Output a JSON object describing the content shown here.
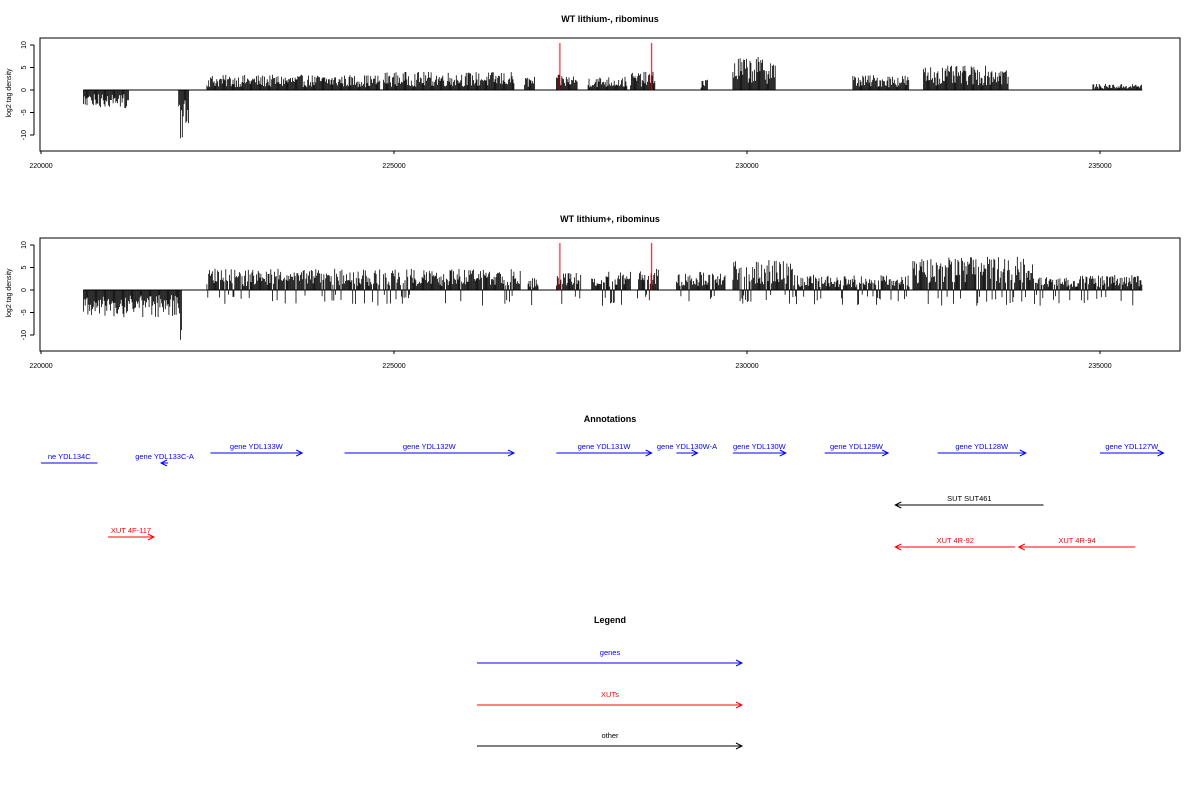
{
  "colors": {
    "bars": "#000000",
    "marker": "#ff0000",
    "gene": "#0000ff",
    "xut": "#ff0000",
    "other": "#000000"
  },
  "chart_data": [
    {
      "type": "bar",
      "title": "WT lithium-, ribominus",
      "xlabel": "",
      "ylabel": "log2 tag density",
      "xlim": [
        220000,
        236000
      ],
      "ylim": [
        -13,
        11
      ],
      "xticks": [
        220000,
        225000,
        230000,
        235000
      ],
      "xtick_labels": [
        "220000",
        "225000",
        "230000",
        "235000"
      ],
      "yticks": [
        10,
        5,
        0,
        -5,
        -10
      ],
      "ytick_labels": [
        "10",
        "5",
        "0",
        "-5",
        "-10"
      ],
      "marker_lines_x": [
        227350,
        228650
      ],
      "series": [
        {
          "values": [
            [
              220600,
              221250,
              -3
            ],
            [
              221250,
              221950,
              0
            ],
            [
              221950,
              222100,
              -8
            ],
            [
              222100,
              222350,
              0
            ],
            [
              222350,
              224800,
              2.5
            ],
            [
              224800,
              224850,
              0
            ],
            [
              224850,
              226700,
              3
            ],
            [
              226700,
              226750,
              0
            ],
            [
              226850,
              227000,
              2.2
            ],
            [
              227300,
              227600,
              2.5
            ],
            [
              227750,
              228300,
              2.2
            ],
            [
              228350,
              228700,
              3
            ],
            [
              228700,
              229300,
              0
            ],
            [
              229350,
              229450,
              2
            ],
            [
              229800,
              230400,
              5.5
            ],
            [
              230400,
              231500,
              0
            ],
            [
              231500,
              232300,
              2.5
            ],
            [
              232500,
              233700,
              4
            ],
            [
              233800,
              234600,
              0
            ],
            [
              234900,
              235600,
              1
            ]
          ]
        }
      ]
    },
    {
      "type": "bar",
      "title": "WT lithium+, ribominus",
      "xlabel": "",
      "ylabel": "log2 tag density",
      "xlim": [
        220000,
        236000
      ],
      "ylim": [
        -13,
        11
      ],
      "xticks": [
        220000,
        225000,
        230000,
        235000
      ],
      "xtick_labels": [
        "220000",
        "225000",
        "230000",
        "235000"
      ],
      "yticks": [
        10,
        5,
        0,
        -5,
        -10
      ],
      "ytick_labels": [
        "10",
        "5",
        "0",
        "-5",
        "-10"
      ],
      "marker_lines_x": [
        227350,
        228650
      ],
      "series": [
        {
          "values": [
            [
              220600,
              221950,
              -4.5
            ],
            [
              221950,
              222000,
              -9
            ],
            [
              222100,
              222350,
              0
            ],
            [
              222350,
              224800,
              3.5
            ],
            [
              224850,
              226800,
              3.5
            ],
            [
              226900,
              227050,
              2
            ],
            [
              227300,
              227650,
              3
            ],
            [
              227800,
              228350,
              3
            ],
            [
              228450,
              228750,
              3.5
            ],
            [
              229000,
              229700,
              3
            ],
            [
              229800,
              230650,
              5
            ],
            [
              230650,
              232300,
              2.5
            ],
            [
              232350,
              234100,
              5.5
            ],
            [
              234100,
              235600,
              2.5
            ]
          ]
        }
      ]
    }
  ],
  "annotations": {
    "title": "Annotations",
    "genes": [
      {
        "label": "ne YDL134C",
        "x0": 220000,
        "x1": 220800,
        "row": 0,
        "dir": "none"
      },
      {
        "label": "gene YDL133C-A",
        "x0": 221700,
        "x1": 221800,
        "row": 0,
        "dir": "left"
      },
      {
        "label": "gene YDL133W",
        "x0": 222400,
        "x1": 223700,
        "row": 1,
        "dir": "right"
      },
      {
        "label": "gene YDL132W",
        "x0": 224300,
        "x1": 226700,
        "row": 1,
        "dir": "right"
      },
      {
        "label": "gene YDL131W",
        "x0": 227300,
        "x1": 228650,
        "row": 1,
        "dir": "right"
      },
      {
        "label": "gene YDL130W-A",
        "x0": 229000,
        "x1": 229300,
        "row": 1,
        "dir": "right"
      },
      {
        "label": "gene YDL130W",
        "x0": 229800,
        "x1": 230550,
        "row": 1,
        "dir": "right"
      },
      {
        "label": "gene YDL129W",
        "x0": 231100,
        "x1": 232000,
        "row": 1,
        "dir": "right"
      },
      {
        "label": "gene YDL128W",
        "x0": 232700,
        "x1": 233950,
        "row": 1,
        "dir": "right"
      },
      {
        "label": "gene YDL127W",
        "x0": 235000,
        "x1": 235900,
        "row": 1,
        "dir": "right"
      }
    ],
    "xuts": [
      {
        "label": "XUT 4F-117",
        "x0": 220950,
        "x1": 221600,
        "dir": "right"
      },
      {
        "label": "XUT 4R-92",
        "x0": 232100,
        "x1": 233800,
        "dir": "left"
      },
      {
        "label": "XUT 4R-94",
        "x0": 233850,
        "x1": 235500,
        "dir": "left"
      }
    ],
    "other": [
      {
        "label": "SUT SUT461",
        "x0": 232100,
        "x1": 234200,
        "dir": "left"
      }
    ]
  },
  "legend": {
    "title": "Legend",
    "items": [
      {
        "label": "genes",
        "kind": "gene"
      },
      {
        "label": "XUTs",
        "kind": "xut"
      },
      {
        "label": "other",
        "kind": "other"
      }
    ]
  }
}
